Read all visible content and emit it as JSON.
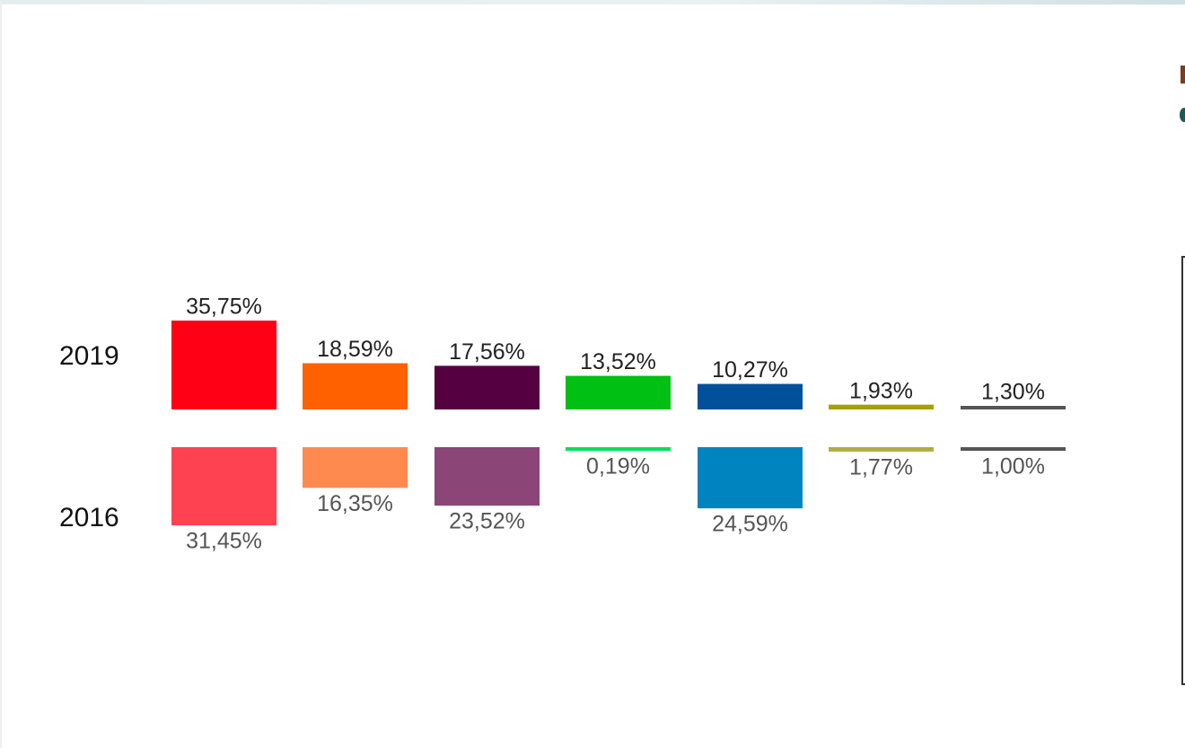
{
  "chart_data": {
    "type": "bar",
    "title": "",
    "xlabel": "",
    "ylabel": "",
    "rows": [
      {
        "year": "2019",
        "color_key": "c2019",
        "values": [
          35.75,
          18.59,
          17.56,
          13.52,
          10.27,
          1.93,
          1.3
        ],
        "labels": [
          "35,75%",
          "18,59%",
          "17,56%",
          "13,52%",
          "10,27%",
          "1,93%",
          "1,30%"
        ]
      },
      {
        "year": "2016",
        "color_key": "c2016",
        "values": [
          31.45,
          16.35,
          23.52,
          0.19,
          24.59,
          1.77,
          1.0
        ],
        "labels": [
          "31,45%",
          "16,35%",
          "23,52%",
          "0,19%",
          "24,59%",
          "1,77%",
          "1,00%"
        ]
      }
    ],
    "colors": {
      "c2019": [
        "#ff0015",
        "#ff6000",
        "#550040",
        "#00c013",
        "#00509b",
        "#a6a000",
        "#555555"
      ],
      "c2016": [
        "#ff4252",
        "#ff8a50",
        "#8b4577",
        "#00e05a",
        "#0084c0",
        "#b0ad40",
        "#555555"
      ]
    }
  }
}
